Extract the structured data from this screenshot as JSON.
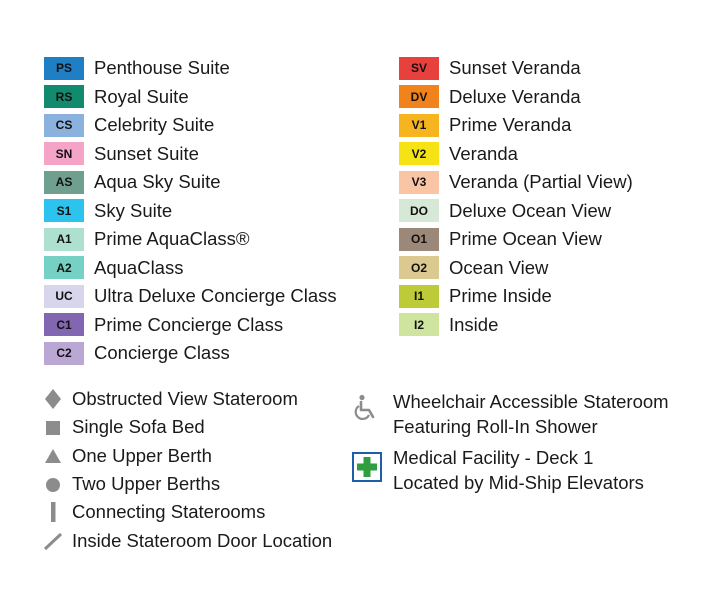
{
  "left_legend": [
    {
      "code": "PS",
      "label": "Penthouse Suite",
      "bg": "#1f7fc5",
      "fg": "#111111"
    },
    {
      "code": "RS",
      "label": "Royal Suite",
      "bg": "#128a6d",
      "fg": "#111111"
    },
    {
      "code": "CS",
      "label": "Celebrity Suite",
      "bg": "#8bb1de",
      "fg": "#111111"
    },
    {
      "code": "SN",
      "label": "Sunset Suite",
      "bg": "#f6a3c8",
      "fg": "#111111"
    },
    {
      "code": "AS",
      "label": "Aqua Sky Suite",
      "bg": "#6f9f8f",
      "fg": "#111111"
    },
    {
      "code": "S1",
      "label": "Sky Suite",
      "bg": "#2cc4ef",
      "fg": "#111111"
    },
    {
      "code": "A1",
      "label": "Prime AquaClass®",
      "bg": "#aee0d0",
      "fg": "#111111"
    },
    {
      "code": "A2",
      "label": "AquaClass",
      "bg": "#76d1c5",
      "fg": "#111111"
    },
    {
      "code": "UC",
      "label": "Ultra Deluxe Concierge Class",
      "bg": "#d7d6ec",
      "fg": "#111111"
    },
    {
      "code": "C1",
      "label": "Prime Concierge Class",
      "bg": "#8266b1",
      "fg": "#111111"
    },
    {
      "code": "C2",
      "label": "Concierge Class",
      "bg": "#bba7d4",
      "fg": "#111111"
    }
  ],
  "right_legend": [
    {
      "code": "SV",
      "label": "Sunset Veranda",
      "bg": "#e8403d",
      "fg": "#111111"
    },
    {
      "code": "DV",
      "label": "Deluxe Veranda",
      "bg": "#f2821c",
      "fg": "#111111"
    },
    {
      "code": "V1",
      "label": "Prime Veranda",
      "bg": "#f6b51e",
      "fg": "#111111"
    },
    {
      "code": "V2",
      "label": "Veranda",
      "bg": "#f6e316",
      "fg": "#111111"
    },
    {
      "code": "V3",
      "label": "Veranda (Partial View)",
      "bg": "#f9c5a4",
      "fg": "#111111"
    },
    {
      "code": "DO",
      "label": "Deluxe Ocean View",
      "bg": "#d6e8d6",
      "fg": "#111111"
    },
    {
      "code": "O1",
      "label": "Prime Ocean View",
      "bg": "#9c8878",
      "fg": "#111111"
    },
    {
      "code": "O2",
      "label": "Ocean View",
      "bg": "#dbc98f",
      "fg": "#111111"
    },
    {
      "code": "I1",
      "label": "Prime Inside",
      "bg": "#bccb37",
      "fg": "#111111"
    },
    {
      "code": "I2",
      "label": "Inside",
      "bg": "#cfe59f",
      "fg": "#111111"
    }
  ],
  "symbols": [
    {
      "icon": "diamond-icon",
      "label": "Obstructed View Stateroom"
    },
    {
      "icon": "square-icon",
      "label": "Single Sofa Bed"
    },
    {
      "icon": "triangle-icon",
      "label": "One Upper Berth"
    },
    {
      "icon": "circle-icon",
      "label": "Two Upper Berths"
    },
    {
      "icon": "vertical-bar-icon",
      "label": "Connecting Staterooms"
    },
    {
      "icon": "diagonal-line-icon",
      "label": "Inside Stateroom Door Location"
    }
  ],
  "wheelchair": {
    "icon": "wheelchair-icon",
    "line1": "Wheelchair Accessible Stateroom",
    "line2": "Featuring Roll-In Shower"
  },
  "medical": {
    "icon": "medical-cross-icon",
    "line1": "Medical Facility - Deck 1",
    "line2": "Located by Mid-Ship Elevators"
  },
  "colors": {
    "symbol_gray": "#8c8c8c",
    "medical_green": "#2e9e3e",
    "medical_border": "#1f5fa8"
  }
}
